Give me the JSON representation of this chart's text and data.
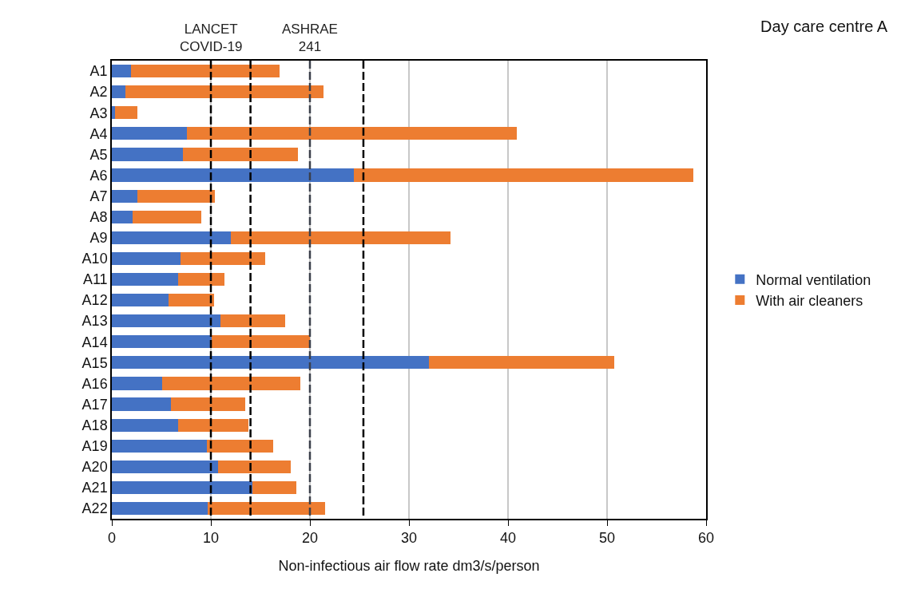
{
  "chart_data": {
    "type": "bar",
    "title": "Day care centre A",
    "xlabel": "Non-infectious air flow rate dm3/s/person",
    "orientation": "horizontal",
    "stacked": true,
    "categories": [
      "A1",
      "A2",
      "A3",
      "A4",
      "A5",
      "A6",
      "A7",
      "A8",
      "A9",
      "A10",
      "A11",
      "A12",
      "A13",
      "A14",
      "A15",
      "A16",
      "A17",
      "A18",
      "A19",
      "A20",
      "A21",
      "A22"
    ],
    "series": [
      {
        "name": "Normal ventilation",
        "color": "#4472c4",
        "values": [
          1.9,
          1.4,
          0.3,
          7.6,
          7.2,
          24.4,
          2.6,
          2.1,
          12.0,
          6.9,
          6.7,
          5.7,
          11.0,
          10.1,
          32.0,
          5.1,
          6.0,
          6.7,
          9.6,
          10.7,
          14.2,
          9.7
        ]
      },
      {
        "name": "With air cleaners",
        "color": "#ed7d31",
        "values": [
          15.0,
          20.0,
          2.3,
          33.3,
          11.6,
          34.3,
          7.8,
          6.9,
          22.2,
          8.6,
          4.7,
          4.6,
          6.5,
          9.9,
          18.7,
          13.9,
          7.5,
          7.1,
          6.7,
          7.4,
          4.4,
          11.8
        ]
      }
    ],
    "xlim": [
      0,
      60
    ],
    "xticks": [
      0,
      10,
      20,
      30,
      40,
      50,
      60
    ],
    "grid": "x",
    "legend": "right",
    "ref_lines": [
      {
        "axis": "x",
        "value": 10,
        "line_style": "dashed",
        "color": "#000000",
        "label": "LANCET\nCOVID-19"
      },
      {
        "axis": "x",
        "value": 14,
        "line_style": "dashed",
        "color": "#000000"
      },
      {
        "axis": "x",
        "value": 20,
        "line_style": "dashed",
        "color": "#3a3f4a",
        "label": "ASHRAE\n241"
      },
      {
        "axis": "x",
        "value": 25.4,
        "line_style": "dashed",
        "color": "#000000"
      }
    ]
  }
}
